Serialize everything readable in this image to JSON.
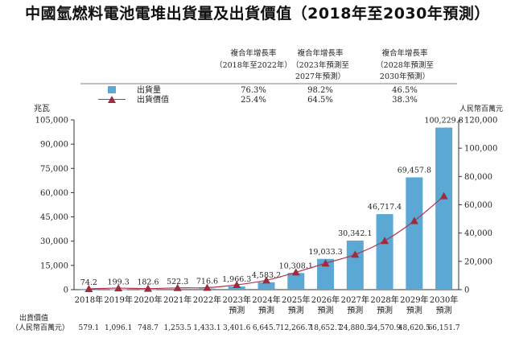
{
  "title": "中國氫燃料電池電堆出貨量及出貨價值（2018年至2030年預測）",
  "growth_table": {
    "headers": [
      [
        "複合年增長率",
        "（2018年至2022年）"
      ],
      [
        "複合年增長率",
        "（2023年預測至",
        "2027年預測）"
      ],
      [
        "複合年增長率",
        "（2028年預測至",
        "2030年預測）"
      ]
    ],
    "rows": [
      {
        "label": "出貨量",
        "marker": "bar",
        "values": [
          "76.3%",
          "98.2%",
          "46.5%"
        ]
      },
      {
        "label": "出貨價值",
        "marker": "line",
        "values": [
          "25.4%",
          "64.5%",
          "38.3%"
        ]
      }
    ]
  },
  "colors": {
    "bar": "#5ba8d4",
    "line": "#b5324a",
    "line_marker": "#9c2d3f",
    "axis": "#333333"
  },
  "chart_data": {
    "type": "bar",
    "categories": [
      [
        "2018年"
      ],
      [
        "2019年"
      ],
      [
        "2020年"
      ],
      [
        "2021年"
      ],
      [
        "2022年"
      ],
      [
        "2023年",
        "預測"
      ],
      [
        "2024年",
        "預測"
      ],
      [
        "2025年",
        "預測"
      ],
      [
        "2026年",
        "預測"
      ],
      [
        "2027年",
        "預測"
      ],
      [
        "2028年",
        "預測"
      ],
      [
        "2029年",
        "預測"
      ],
      [
        "2030年",
        "預測"
      ]
    ],
    "series": [
      {
        "name": "出貨量",
        "type": "bar",
        "axis": "left",
        "values": [
          74.2,
          199.3,
          182.6,
          522.3,
          716.6,
          1966.3,
          4583.2,
          10308.1,
          19033.3,
          30342.1,
          46717.4,
          69457.8,
          100229.8
        ],
        "labels": [
          "74.2",
          "199.3",
          "182.6",
          "522.3",
          "716.6",
          "1,966.3",
          "4,583.2",
          "10,308.1",
          "19,033.3",
          "30,342.1",
          "46,717.4",
          "69,457.8",
          "100,229.8"
        ]
      },
      {
        "name": "出貨價值",
        "type": "line",
        "axis": "right",
        "values": [
          579.1,
          1096.1,
          748.7,
          1253.5,
          1433.1,
          3401.6,
          6645.7,
          12266.7,
          18652.7,
          24880.5,
          34570.9,
          48620.5,
          66151.7
        ],
        "labels": [
          "579.1",
          "1,096.1",
          "748.7",
          "1,253.5",
          "1,433.1",
          "3,401.6",
          "6,645.7",
          "12,266.7",
          "18,652.7",
          "24,880.5",
          "34,570.9",
          "48,620.5",
          "66,151.7"
        ]
      }
    ],
    "left_axis": {
      "label": "兆瓦",
      "ylim": [
        0,
        105000
      ],
      "ticks": [
        0,
        15000,
        30000,
        45000,
        60000,
        75000,
        90000,
        105000
      ],
      "tick_labels": [
        "0",
        "15,000",
        "30,000",
        "45,000",
        "60,000",
        "75,000",
        "90,000",
        "105,000"
      ]
    },
    "right_axis": {
      "label": "人民幣百萬元",
      "ylim": [
        0,
        120000
      ],
      "ticks": [
        0,
        20000,
        40000,
        60000,
        80000,
        100000,
        120000
      ],
      "tick_labels": [
        "0",
        "20,000",
        "40,000",
        "60,000",
        "80,000",
        "100,000",
        "120,000"
      ]
    },
    "bottom_row_label": [
      "出貨價值",
      "（人民幣百萬元）"
    ],
    "grid": false,
    "legend": "top-left"
  }
}
